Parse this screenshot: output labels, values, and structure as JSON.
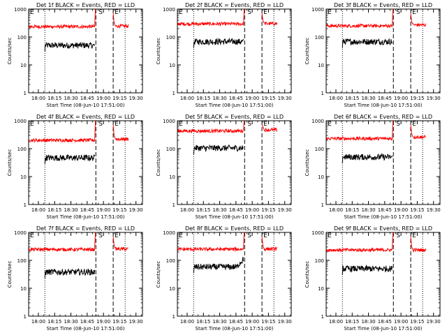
{
  "chart_data": {
    "type": "line",
    "shared": {
      "xlabel": "Start Time (08-Jun-10 17:51:00)",
      "ylabel": "Counts/sec",
      "yscale": "log",
      "ylim": [
        1,
        1000
      ],
      "yticks": [
        1,
        10,
        100,
        1000
      ],
      "ytick_labels": [
        "1",
        "10",
        "100",
        "1000"
      ],
      "x_unit": "minutes after 17:51:00",
      "xlim": [
        0,
        105
      ],
      "xticks": [
        9,
        24,
        39,
        54,
        69,
        84,
        99
      ],
      "xtick_labels": [
        "18:00",
        "18:15",
        "18:30",
        "18:45",
        "19:00",
        "19:15",
        "19:30"
      ],
      "dotted_vlines": [
        15,
        89
      ],
      "dashed_vlines": [
        62,
        78
      ],
      "annotations": [
        {
          "text": "E",
          "x": 0
        },
        {
          "text": "S",
          "x": 62
        },
        {
          "text": "E",
          "x": 78
        }
      ],
      "line_colors": {
        "black": "#000000",
        "red": "#ff0000"
      }
    },
    "panels": [
      {
        "title": "Det 1f BLACK = Events, RED = LLD",
        "series": [
          {
            "color": "#000000",
            "segments": [
              {
                "x_start": 15,
                "x_end": 61,
                "level": 50
              }
            ]
          },
          {
            "color": "#ff0000",
            "segments": [
              {
                "x_start": 0,
                "x_end": 61,
                "level": 235,
                "spike_end": 1000
              },
              {
                "x_start": 78,
                "x_end": 92,
                "level": 245,
                "spike_start": 700
              }
            ]
          }
        ]
      },
      {
        "title": "Det 2f BLACK = Events, RED = LLD",
        "series": [
          {
            "color": "#000000",
            "segments": [
              {
                "x_start": 15,
                "x_end": 61,
                "level": 68
              }
            ]
          },
          {
            "color": "#ff0000",
            "segments": [
              {
                "x_start": 0,
                "x_end": 61,
                "level": 295,
                "spike_end": 1000
              },
              {
                "x_start": 78,
                "x_end": 92,
                "level": 300,
                "spike_start": 700
              }
            ]
          }
        ]
      },
      {
        "title": "Det 3f BLACK = Events, RED = LLD",
        "series": [
          {
            "color": "#000000",
            "segments": [
              {
                "x_start": 15,
                "x_end": 61,
                "level": 68
              }
            ]
          },
          {
            "color": "#ff0000",
            "segments": [
              {
                "x_start": 0,
                "x_end": 61,
                "level": 250,
                "spike_end": 1000
              },
              {
                "x_start": 78,
                "x_end": 92,
                "level": 270,
                "spike_start": 700
              }
            ]
          }
        ]
      },
      {
        "title": "Det 4f BLACK = Events, RED = LLD",
        "series": [
          {
            "color": "#000000",
            "segments": [
              {
                "x_start": 15,
                "x_end": 61,
                "level": 47
              }
            ]
          },
          {
            "color": "#ff0000",
            "segments": [
              {
                "x_start": 0,
                "x_end": 61,
                "level": 200,
                "spike_end": 1000
              },
              {
                "x_start": 78,
                "x_end": 92,
                "level": 220,
                "spike_start": 700
              }
            ]
          }
        ]
      },
      {
        "title": "Det 5f BLACK = Events, RED = LLD",
        "series": [
          {
            "color": "#000000",
            "segments": [
              {
                "x_start": 15,
                "x_end": 61,
                "level": 105
              }
            ]
          },
          {
            "color": "#ff0000",
            "segments": [
              {
                "x_start": 0,
                "x_end": 61,
                "level": 430,
                "spike_end": 1000
              },
              {
                "x_start": 78,
                "x_end": 92,
                "level": 470,
                "spike_start": 700
              }
            ]
          }
        ]
      },
      {
        "title": "Det 6f BLACK = Events, RED = LLD",
        "series": [
          {
            "color": "#000000",
            "segments": [
              {
                "x_start": 15,
                "x_end": 61,
                "level": 50
              }
            ]
          },
          {
            "color": "#ff0000",
            "segments": [
              {
                "x_start": 0,
                "x_end": 61,
                "level": 230,
                "spike_end": 1000
              },
              {
                "x_start": 78,
                "x_end": 92,
                "level": 260,
                "spike_start": 700
              }
            ]
          }
        ]
      },
      {
        "title": "Det 7f BLACK = Events, RED = LLD",
        "series": [
          {
            "color": "#000000",
            "segments": [
              {
                "x_start": 15,
                "x_end": 61,
                "level": 38
              }
            ]
          },
          {
            "color": "#ff0000",
            "segments": [
              {
                "x_start": 0,
                "x_end": 61,
                "level": 245,
                "spike_end": 1000
              },
              {
                "x_start": 78,
                "x_end": 92,
                "level": 255,
                "spike_start": 700
              }
            ]
          }
        ]
      },
      {
        "title": "Det 8f BLACK = Events, RED = LLD",
        "series": [
          {
            "color": "#000000",
            "segments": [
              {
                "x_start": 15,
                "x_end": 61,
                "level": 58,
                "end_rise": 110
              }
            ]
          },
          {
            "color": "#ff0000",
            "segments": [
              {
                "x_start": 0,
                "x_end": 61,
                "level": 250,
                "spike_end": 1000
              },
              {
                "x_start": 78,
                "x_end": 92,
                "level": 255,
                "spike_start": 700
              }
            ]
          }
        ]
      },
      {
        "title": "Det 9f BLACK = Events, RED = LLD",
        "series": [
          {
            "color": "#000000",
            "segments": [
              {
                "x_start": 15,
                "x_end": 61,
                "level": 50
              }
            ]
          },
          {
            "color": "#ff0000",
            "segments": [
              {
                "x_start": 0,
                "x_end": 61,
                "level": 235,
                "spike_end": 1000
              },
              {
                "x_start": 78,
                "x_end": 92,
                "level": 235,
                "spike_start": 700
              }
            ]
          }
        ]
      }
    ]
  }
}
